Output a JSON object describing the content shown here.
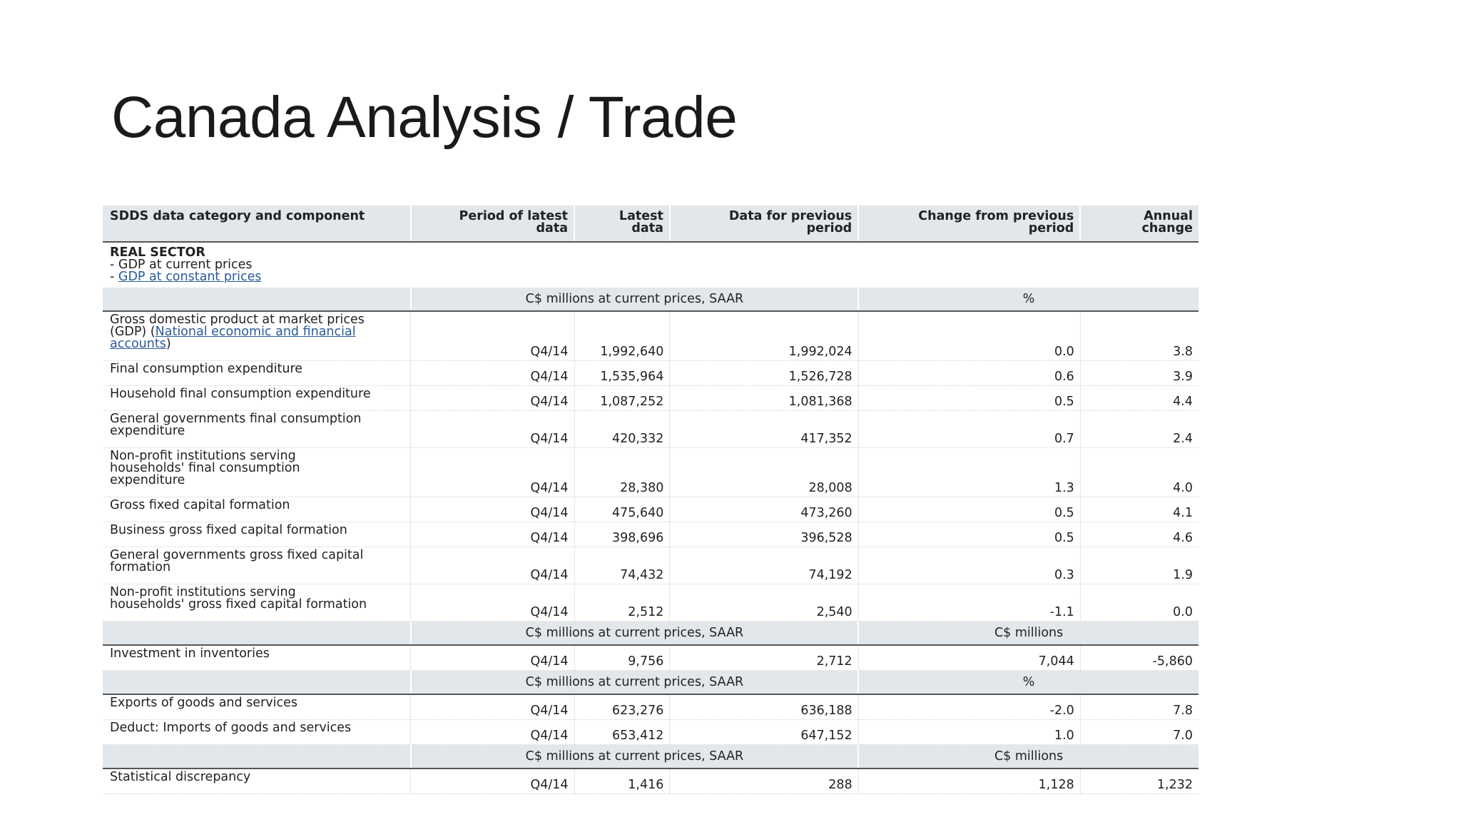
{
  "slide": {
    "title": "Canada Analysis / Trade"
  },
  "table": {
    "headers": {
      "category": "SDDS data category and component",
      "period_line1": "Period of latest",
      "period_line2": "data",
      "latest_line1": "Latest",
      "latest_line2": "data",
      "prev_line1": "Data for previous",
      "prev_line2": "period",
      "change_line1": "Change from previous",
      "change_line2": "period",
      "annual_line1": "Annual",
      "annual_line2": "change"
    },
    "sector": {
      "title": "REAL SECTOR",
      "item1_prefix": "- ",
      "item1": "GDP at current prices",
      "item2_prefix": "- ",
      "item2_link": "GDP at constant prices"
    },
    "units": {
      "current_prices": "C$ millions at current prices, SAAR",
      "percent": "%",
      "millions": "C$ millions"
    },
    "gdp_row": {
      "label_line1": "Gross domestic product at market prices",
      "label_line2_pre": "(GDP) (",
      "label_link": "National economic and financial accounts",
      "label_post": ")",
      "period": "Q4/14",
      "latest": "1,992,640",
      "previous": "1,992,024",
      "change": "0.0",
      "annual": "3.8"
    },
    "rows": [
      {
        "label": "Final consumption expenditure",
        "period": "Q4/14",
        "latest": "1,535,964",
        "previous": "1,526,728",
        "change": "0.6",
        "annual": "3.9"
      },
      {
        "label": "Household final consumption expenditure",
        "period": "Q4/14",
        "latest": "1,087,252",
        "previous": "1,081,368",
        "change": "0.5",
        "annual": "4.4"
      },
      {
        "label_line1": "General governments final consumption",
        "label_line2": "expenditure",
        "period": "Q4/14",
        "latest": "420,332",
        "previous": "417,352",
        "change": "0.7",
        "annual": "2.4"
      },
      {
        "label_line1": "Non-profit institutions serving",
        "label_line2": "households' final consumption",
        "label_line3": "expenditure",
        "period": "Q4/14",
        "latest": "28,380",
        "previous": "28,008",
        "change": "1.3",
        "annual": "4.0"
      },
      {
        "label": "Gross fixed capital formation",
        "period": "Q4/14",
        "latest": "475,640",
        "previous": "473,260",
        "change": "0.5",
        "annual": "4.1"
      },
      {
        "label": "Business gross fixed capital formation",
        "period": "Q4/14",
        "latest": "398,696",
        "previous": "396,528",
        "change": "0.5",
        "annual": "4.6"
      },
      {
        "label_line1": "General governments gross fixed capital",
        "label_line2": "formation",
        "period": "Q4/14",
        "latest": "74,432",
        "previous": "74,192",
        "change": "0.3",
        "annual": "1.9"
      },
      {
        "label_line1": "Non-profit institutions serving",
        "label_line2": "households' gross fixed capital formation",
        "period": "Q4/14",
        "latest": "2,512",
        "previous": "2,540",
        "change": "-1.1",
        "annual": "0.0"
      }
    ],
    "inventories": {
      "label": "Investment in inventories",
      "period": "Q4/14",
      "latest": "9,756",
      "previous": "2,712",
      "change": "7,044",
      "annual": "-5,860"
    },
    "trade": [
      {
        "label": "Exports of goods and services",
        "period": "Q4/14",
        "latest": "623,276",
        "previous": "636,188",
        "change": "-2.0",
        "annual": "7.8"
      },
      {
        "label": "Deduct: Imports of goods and services",
        "period": "Q4/14",
        "latest": "653,412",
        "previous": "647,152",
        "change": "1.0",
        "annual": "7.0"
      }
    ],
    "discrepancy": {
      "label": "Statistical discrepancy",
      "period": "Q4/14",
      "latest": "1,416",
      "previous": "288",
      "change": "1,128",
      "annual": "1,232"
    }
  }
}
